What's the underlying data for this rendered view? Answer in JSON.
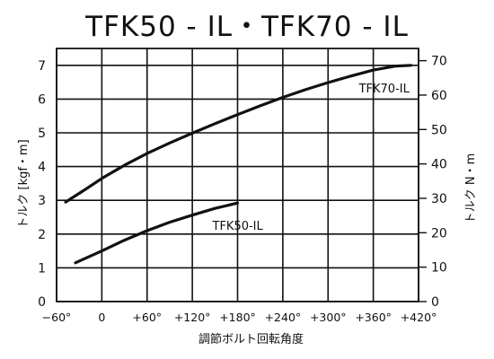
{
  "chart_data": {
    "type": "line",
    "title": "TFK50 - IL・TFK70 - IL",
    "xlabel": "調節ボルト回転角度",
    "ylabel_left": "トルク [kgf・m]",
    "ylabel_right": "トルク N・m",
    "xlim": [
      -60,
      420
    ],
    "ylim_left": [
      0,
      7.5
    ],
    "ylim_right": [
      0,
      73.55
    ],
    "x_ticks": [
      -60,
      0,
      60,
      120,
      180,
      240,
      300,
      360,
      420
    ],
    "x_tick_labels": [
      "−60°",
      "0",
      "+60°",
      "+120°",
      "+180°",
      "+240°",
      "+300°",
      "+360°",
      "+420°"
    ],
    "y_ticks_left": [
      0,
      1,
      2,
      3,
      4,
      5,
      6,
      7
    ],
    "y_ticks_right": [
      0,
      10,
      20,
      30,
      40,
      50,
      60,
      70
    ],
    "grid": true,
    "series": [
      {
        "name": "TFK70-IL",
        "color": "#111111",
        "x": [
          -48,
          -20,
          0,
          30,
          60,
          90,
          120,
          150,
          180,
          210,
          240,
          270,
          300,
          330,
          360,
          390,
          410
        ],
        "y": [
          2.95,
          3.35,
          3.65,
          4.04,
          4.39,
          4.7,
          4.99,
          5.27,
          5.54,
          5.8,
          6.05,
          6.28,
          6.49,
          6.68,
          6.86,
          6.98,
          7.0
        ]
      },
      {
        "name": "TFK50-IL",
        "color": "#111111",
        "x": [
          -35,
          0,
          30,
          60,
          90,
          120,
          150,
          180
        ],
        "y": [
          1.15,
          1.5,
          1.82,
          2.1,
          2.35,
          2.56,
          2.76,
          2.92
        ]
      }
    ]
  }
}
